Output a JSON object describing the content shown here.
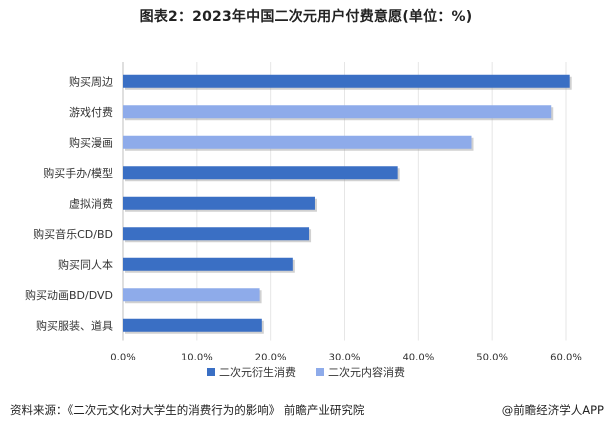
{
  "chart_data": {
    "type": "bar",
    "orientation": "horizontal",
    "title": "图表2：2023年中国二次元用户付费意愿(单位：%)",
    "categories": [
      "购买周边",
      "游戏付费",
      "购买漫画",
      "购买手办/模型",
      "虚拟消费",
      "购买音乐CD/BD",
      "购买同人本",
      "购买动画BD/DVD",
      "购买服装、道具"
    ],
    "values": [
      60.5,
      58.0,
      47.2,
      37.2,
      26.0,
      25.2,
      23.0,
      18.5,
      18.8
    ],
    "series_by_category": [
      "二次元衍生消费",
      "二次元内容消费",
      "二次元内容消费",
      "二次元衍生消费",
      "二次元衍生消费",
      "二次元衍生消费",
      "二次元衍生消费",
      "二次元内容消费",
      "二次元衍生消费"
    ],
    "series": [
      {
        "name": "二次元衍生消费",
        "color": "#3a6fc4"
      },
      {
        "name": "二次元内容消费",
        "color": "#8eabea"
      }
    ],
    "xlim": [
      0,
      60
    ],
    "xticks": [
      "0.0%",
      "10.0%",
      "20.0%",
      "30.0%",
      "40.0%",
      "50.0%",
      "60.0%"
    ],
    "gridlines": true,
    "legend_position": "bottom"
  },
  "footer": {
    "source": "资料来源：《二次元文化对大学生的消费行为的影响》 前瞻产业研究院",
    "brand": "@前瞻经济学人APP"
  }
}
